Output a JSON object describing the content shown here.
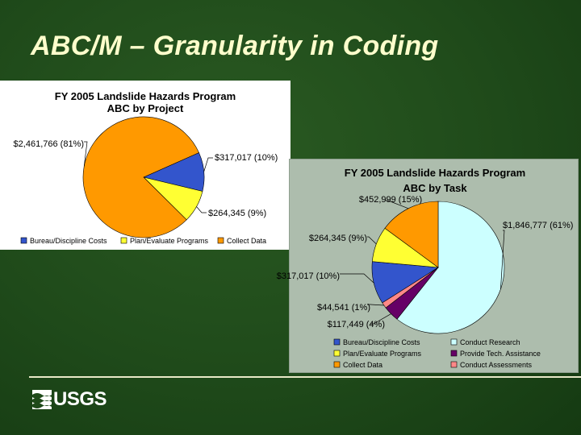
{
  "slide": {
    "title": "ABC/M – Granularity in Coding",
    "logo_text": "USGS",
    "title_color": "#ffffcc",
    "background_color": "#1f4a1a"
  },
  "chart_data": [
    {
      "type": "pie",
      "title": "FY 2005 Landslide Hazards Program",
      "subtitle": "ABC by Project",
      "legend_position": "bottom",
      "slices": [
        {
          "name": "Bureau/Discipline Costs",
          "value": 317017,
          "label": "$317,017 (10%)",
          "color": "#3355cc"
        },
        {
          "name": "Plan/Evaluate Programs",
          "value": 264345,
          "label": "$264,345 (9%)",
          "color": "#ffff33"
        },
        {
          "name": "Collect Data",
          "value": 2461766,
          "label": "$2,461,766 (81%)",
          "color": "#ff9900"
        }
      ]
    },
    {
      "type": "pie",
      "title": "FY 2005 Landslide Hazards Program",
      "subtitle": "ABC by Task",
      "legend_position": "bottom",
      "slices": [
        {
          "name": "Conduct Research",
          "value": 1846777,
          "label": "$1,846,777 (61%)",
          "color": "#ccffff"
        },
        {
          "name": "Provide Tech. Assistance",
          "value": 117449,
          "label": "$117,449 (4%)",
          "color": "#660066"
        },
        {
          "name": "Conduct Assessments",
          "value": 44541,
          "label": "$44,541 (1%)",
          "color": "#ff8888"
        },
        {
          "name": "Bureau/Discipline Costs",
          "value": 317017,
          "label": "$317,017 (10%)",
          "color": "#3355cc"
        },
        {
          "name": "Plan/Evaluate Programs",
          "value": 264345,
          "label": "$264,345 (9%)",
          "color": "#ffff33"
        },
        {
          "name": "Collect Data",
          "value": 452999,
          "label": "$452,999 (15%)",
          "color": "#ff9900"
        }
      ],
      "legend": [
        "Bureau/Discipline Costs",
        "Conduct Research",
        "Plan/Evaluate Programs",
        "Provide Tech. Assistance",
        "Collect Data",
        "Conduct Assessments"
      ]
    }
  ]
}
